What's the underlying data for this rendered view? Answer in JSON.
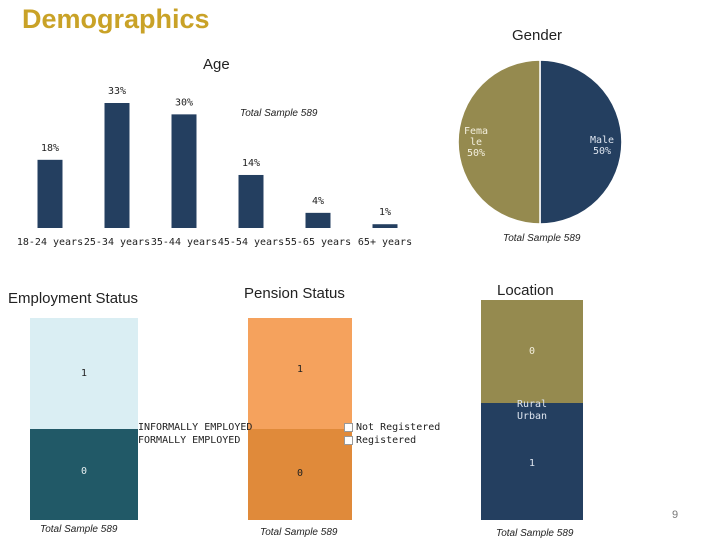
{
  "page": {
    "title": "Demographics",
    "page_number": "9"
  },
  "chart_data": [
    {
      "type": "bar",
      "title": "Age",
      "note": "Total Sample 589",
      "categories": [
        "18-24 years",
        "25-34 years",
        "35-44 years",
        "45-54 years",
        "55-65 years",
        "65+ years"
      ],
      "values": [
        18,
        33,
        30,
        14,
        4,
        1
      ],
      "value_labels": [
        "18%",
        "33%",
        "30%",
        "14%",
        "4%",
        "1%"
      ],
      "ylim": [
        0,
        33
      ],
      "color": "#243f60"
    },
    {
      "type": "pie",
      "title": "Gender",
      "note": "Total Sample 589",
      "slices": [
        {
          "name": "Male",
          "value": 50,
          "label": "Male 50%",
          "color": "#243f60"
        },
        {
          "name": "Female",
          "value": 50,
          "label": "Fema le 50%",
          "color": "#958a4f"
        }
      ]
    },
    {
      "type": "bar",
      "stacked": true,
      "title": "Employment Status",
      "note": "Total Sample 589",
      "series": [
        {
          "name": "INFORMALLY EMPLOYED",
          "value": 1,
          "label": "1",
          "color": "#daeef3"
        },
        {
          "name": "FORMALLY EMPLOYED",
          "value": 0,
          "label": "0",
          "color": "#215967"
        }
      ]
    },
    {
      "type": "bar",
      "stacked": true,
      "title": "Pension Status",
      "note": "Total Sample 589",
      "series": [
        {
          "name": "Not Registered",
          "value": 1,
          "label": "1",
          "color": "#f5a25d"
        },
        {
          "name": "Registered",
          "value": 0,
          "label": "0",
          "color": "#e08a3a"
        }
      ]
    },
    {
      "type": "bar",
      "stacked": true,
      "title": "Location",
      "note": "Total Sample 589",
      "series": [
        {
          "name": "Rural",
          "value": 0,
          "label": "0",
          "color": "#958a4f"
        },
        {
          "name": "Urban",
          "value": 1,
          "label": "1",
          "color": "#243f60"
        }
      ]
    }
  ]
}
